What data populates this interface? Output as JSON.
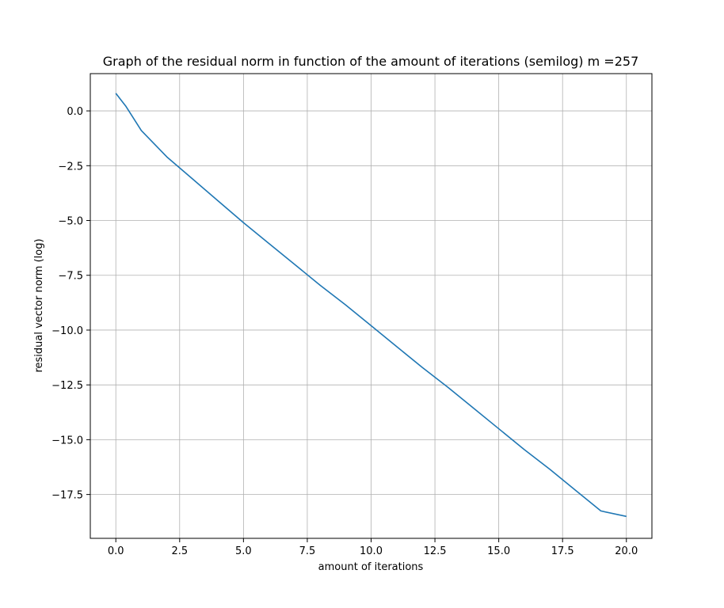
{
  "chart_data": {
    "type": "line",
    "title": "Graph of the residual norm in function of the amount of iterations (semilog) m =257",
    "xlabel": "amount of iterations",
    "ylabel": "residual vector norm (log)",
    "xlim": [
      -1,
      21
    ],
    "ylim": [
      -19.5,
      1.7
    ],
    "grid": true,
    "xticks": [
      0.0,
      2.5,
      5.0,
      7.5,
      10.0,
      12.5,
      15.0,
      17.5,
      20.0
    ],
    "xtick_labels": [
      "0.0",
      "2.5",
      "5.0",
      "7.5",
      "10.0",
      "12.5",
      "15.0",
      "17.5",
      "20.0"
    ],
    "yticks": [
      0.0,
      -2.5,
      -5.0,
      -7.5,
      -10.0,
      -12.5,
      -15.0,
      -17.5
    ],
    "ytick_labels": [
      "0.0",
      "−2.5",
      "−5.0",
      "−7.5",
      "−10.0",
      "−12.5",
      "−15.0",
      "−17.5"
    ],
    "series": [
      {
        "color": "#1f77b4",
        "x": [
          0,
          0.4,
          1,
          2,
          3,
          4,
          5,
          6,
          7,
          8,
          9,
          10,
          11,
          12,
          13,
          14,
          15,
          16,
          17,
          18,
          19,
          20
        ],
        "y": [
          0.8,
          0.2,
          -0.9,
          -2.1,
          -3.1,
          -4.1,
          -5.1,
          -6.05,
          -7.0,
          -7.95,
          -8.85,
          -9.8,
          -10.75,
          -11.7,
          -12.6,
          -13.55,
          -14.5,
          -15.45,
          -16.35,
          -17.3,
          -18.25,
          -18.5
        ]
      }
    ]
  }
}
